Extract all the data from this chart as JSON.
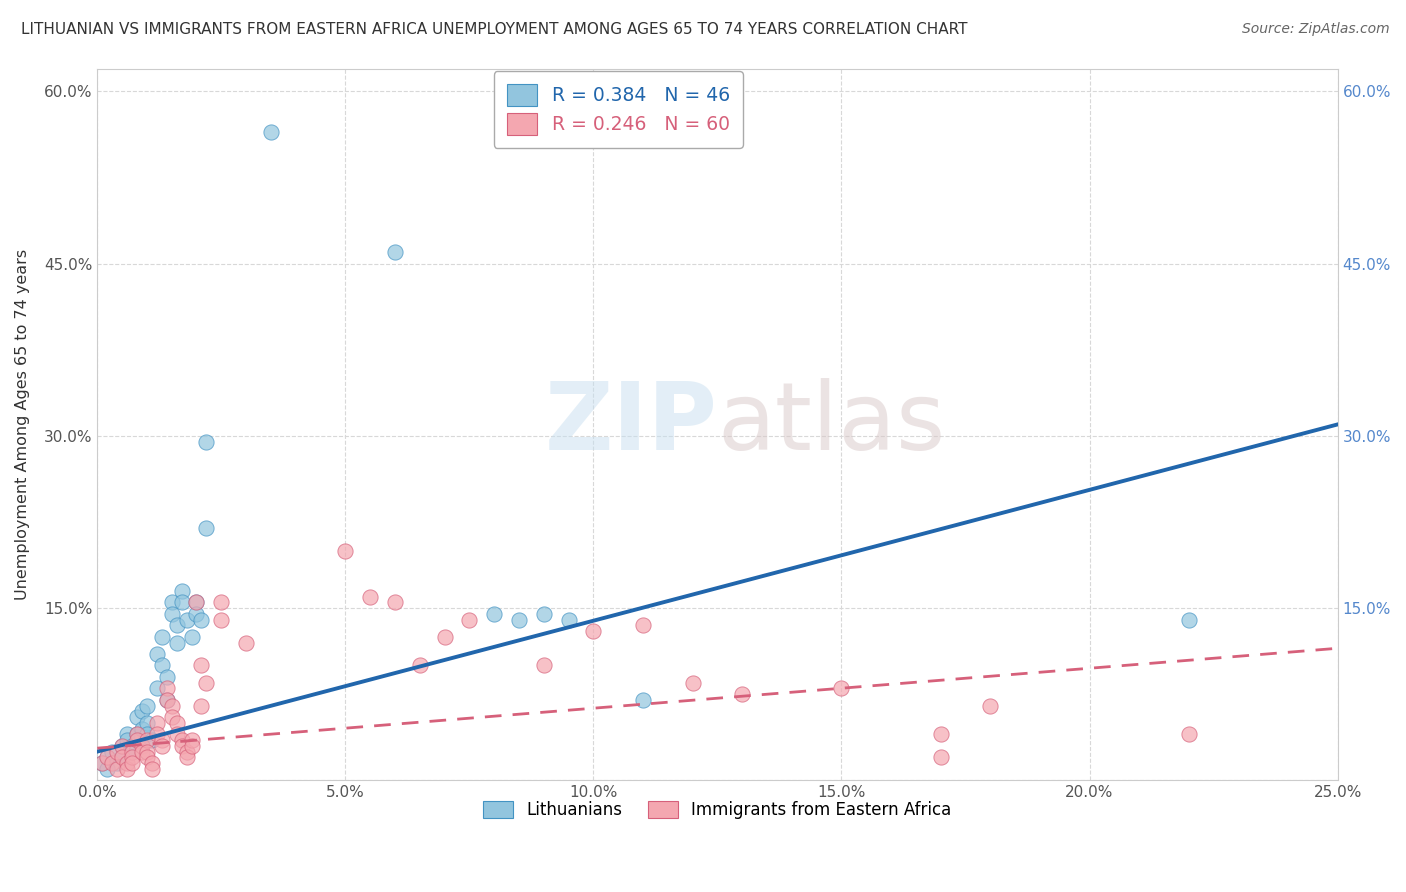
{
  "title": "LITHUANIAN VS IMMIGRANTS FROM EASTERN AFRICA UNEMPLOYMENT AMONG AGES 65 TO 74 YEARS CORRELATION CHART",
  "source": "Source: ZipAtlas.com",
  "ylabel": "Unemployment Among Ages 65 to 74 years",
  "xlim": [
    0.0,
    0.25
  ],
  "ylim": [
    0.0,
    0.62
  ],
  "xticks": [
    0.0,
    0.05,
    0.1,
    0.15,
    0.2,
    0.25
  ],
  "yticks": [
    0.0,
    0.15,
    0.3,
    0.45,
    0.6
  ],
  "xticklabels": [
    "0.0%",
    "5.0%",
    "10.0%",
    "15.0%",
    "20.0%",
    "25.0%"
  ],
  "yticklabels": [
    "",
    "15.0%",
    "30.0%",
    "45.0%",
    "60.0%"
  ],
  "legend_entries": [
    {
      "label": "R = 0.384   N = 46",
      "color": "#6baed6"
    },
    {
      "label": "R = 0.246   N = 60",
      "color": "#fb9a99"
    }
  ],
  "legend_labels": [
    "Lithuanians",
    "Immigrants from Eastern Africa"
  ],
  "blue_color": "#92c5de",
  "pink_color": "#f4a7b0",
  "blue_edge_color": "#4393c3",
  "pink_edge_color": "#d6607a",
  "blue_line_color": "#2166ac",
  "pink_line_color": "#d6607a",
  "blue_reg": [
    0.0,
    0.025,
    0.25,
    0.31
  ],
  "pink_reg": [
    0.0,
    0.028,
    0.25,
    0.115
  ],
  "blue_scatter": [
    [
      0.001,
      0.015
    ],
    [
      0.002,
      0.02
    ],
    [
      0.003,
      0.025
    ],
    [
      0.004,
      0.015
    ],
    [
      0.005,
      0.03
    ],
    [
      0.005,
      0.02
    ],
    [
      0.006,
      0.04
    ],
    [
      0.006,
      0.035
    ],
    [
      0.007,
      0.03
    ],
    [
      0.007,
      0.025
    ],
    [
      0.008,
      0.055
    ],
    [
      0.008,
      0.04
    ],
    [
      0.009,
      0.045
    ],
    [
      0.009,
      0.06
    ],
    [
      0.01,
      0.065
    ],
    [
      0.01,
      0.05
    ],
    [
      0.01,
      0.04
    ],
    [
      0.011,
      0.035
    ],
    [
      0.012,
      0.11
    ],
    [
      0.012,
      0.08
    ],
    [
      0.013,
      0.125
    ],
    [
      0.013,
      0.1
    ],
    [
      0.014,
      0.09
    ],
    [
      0.014,
      0.07
    ],
    [
      0.015,
      0.155
    ],
    [
      0.015,
      0.145
    ],
    [
      0.016,
      0.135
    ],
    [
      0.016,
      0.12
    ],
    [
      0.017,
      0.165
    ],
    [
      0.017,
      0.155
    ],
    [
      0.018,
      0.14
    ],
    [
      0.019,
      0.125
    ],
    [
      0.02,
      0.155
    ],
    [
      0.02,
      0.145
    ],
    [
      0.021,
      0.14
    ],
    [
      0.022,
      0.295
    ],
    [
      0.022,
      0.22
    ],
    [
      0.035,
      0.565
    ],
    [
      0.06,
      0.46
    ],
    [
      0.08,
      0.145
    ],
    [
      0.085,
      0.14
    ],
    [
      0.09,
      0.145
    ],
    [
      0.095,
      0.14
    ],
    [
      0.11,
      0.07
    ],
    [
      0.22,
      0.14
    ],
    [
      0.002,
      0.01
    ]
  ],
  "pink_scatter": [
    [
      0.001,
      0.015
    ],
    [
      0.002,
      0.02
    ],
    [
      0.003,
      0.015
    ],
    [
      0.004,
      0.01
    ],
    [
      0.004,
      0.025
    ],
    [
      0.005,
      0.03
    ],
    [
      0.005,
      0.02
    ],
    [
      0.006,
      0.015
    ],
    [
      0.006,
      0.01
    ],
    [
      0.007,
      0.025
    ],
    [
      0.007,
      0.02
    ],
    [
      0.007,
      0.015
    ],
    [
      0.008,
      0.04
    ],
    [
      0.008,
      0.035
    ],
    [
      0.009,
      0.03
    ],
    [
      0.009,
      0.025
    ],
    [
      0.01,
      0.035
    ],
    [
      0.01,
      0.025
    ],
    [
      0.01,
      0.02
    ],
    [
      0.011,
      0.015
    ],
    [
      0.011,
      0.01
    ],
    [
      0.012,
      0.05
    ],
    [
      0.012,
      0.04
    ],
    [
      0.013,
      0.035
    ],
    [
      0.013,
      0.03
    ],
    [
      0.014,
      0.08
    ],
    [
      0.014,
      0.07
    ],
    [
      0.015,
      0.065
    ],
    [
      0.015,
      0.055
    ],
    [
      0.016,
      0.05
    ],
    [
      0.016,
      0.04
    ],
    [
      0.017,
      0.035
    ],
    [
      0.017,
      0.03
    ],
    [
      0.018,
      0.025
    ],
    [
      0.018,
      0.02
    ],
    [
      0.019,
      0.035
    ],
    [
      0.019,
      0.03
    ],
    [
      0.02,
      0.155
    ],
    [
      0.021,
      0.1
    ],
    [
      0.021,
      0.065
    ],
    [
      0.022,
      0.085
    ],
    [
      0.025,
      0.155
    ],
    [
      0.025,
      0.14
    ],
    [
      0.03,
      0.12
    ],
    [
      0.05,
      0.2
    ],
    [
      0.055,
      0.16
    ],
    [
      0.06,
      0.155
    ],
    [
      0.065,
      0.1
    ],
    [
      0.07,
      0.125
    ],
    [
      0.075,
      0.14
    ],
    [
      0.09,
      0.1
    ],
    [
      0.1,
      0.13
    ],
    [
      0.11,
      0.135
    ],
    [
      0.12,
      0.085
    ],
    [
      0.13,
      0.075
    ],
    [
      0.15,
      0.08
    ],
    [
      0.17,
      0.04
    ],
    [
      0.18,
      0.065
    ],
    [
      0.22,
      0.04
    ],
    [
      0.17,
      0.02
    ]
  ],
  "watermark": "ZIPatlas",
  "background_color": "#ffffff",
  "grid_color": "#d8d8d8"
}
